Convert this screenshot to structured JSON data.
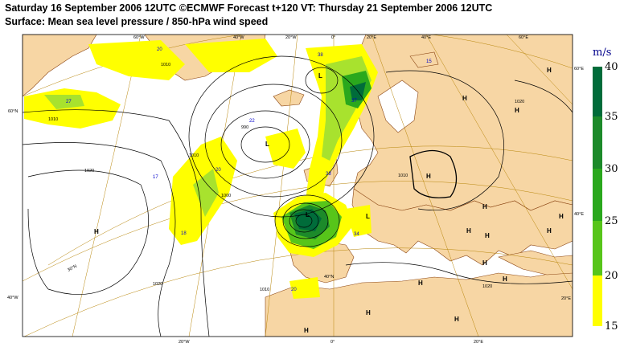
{
  "header": {
    "line1": "Saturday 16 September 2006 12UTC ©ECMWF Forecast t+120 VT: Thursday 21 September 2006 12UTC",
    "line2": "Surface: Mean sea level pressure / 850-hPa wind speed"
  },
  "legend": {
    "unit": "m/s",
    "levels": [
      "40",
      "35",
      "30",
      "25",
      "20",
      "15"
    ],
    "colors": [
      "#006c3a",
      "#1c8a2a",
      "#2aa81d",
      "#57c51a",
      "#a8e22e",
      "#ffff00"
    ]
  },
  "graticule": {
    "top": [
      "60°W",
      "40°W",
      "20°W",
      "0°",
      "20°E",
      "40°E",
      "60°E"
    ],
    "bottom": [
      "20°W",
      "0°",
      "20°E"
    ],
    "left": [
      "60°N",
      "40°W"
    ],
    "right": [
      "60°E",
      "40°E",
      "20°E"
    ],
    "lat_labels": [
      "30°N",
      "40°N"
    ]
  },
  "pressure_centers": [
    "L",
    "L",
    "L",
    "L",
    "H",
    "H",
    "H",
    "H",
    "H",
    "H",
    "H",
    "H",
    "H",
    "H",
    "H",
    "H",
    "H",
    "H",
    "H",
    "H"
  ],
  "isobar_labels": [
    "1010",
    "1020",
    "1010",
    "1020",
    "990",
    "1000",
    "1010",
    "1010",
    "1020",
    "1010",
    "1020"
  ],
  "wind_values": [
    "20",
    "27",
    "38",
    "22",
    "37",
    "17",
    "18",
    "20",
    "15",
    "34",
    "20",
    "33"
  ]
}
